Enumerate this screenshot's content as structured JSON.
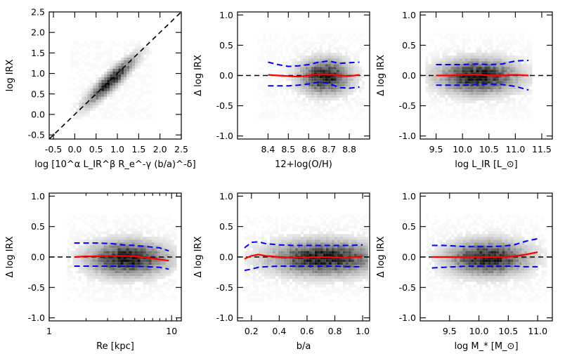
{
  "chart_data": [
    {
      "type": "scatter",
      "subtype": "2d-density",
      "xlabel": "log [10^α L_IR^β R_e^-γ (b/a)^-δ]",
      "ylabel": "log IRX",
      "xlim": [
        -0.6,
        2.5
      ],
      "ylim": [
        -0.6,
        2.5
      ],
      "xscale": "linear",
      "xticks": [
        -0.5,
        0.0,
        0.5,
        1.0,
        1.5,
        2.0,
        2.5
      ],
      "xtick_labels": [
        "-0.5",
        "0.0",
        "0.5",
        "1.0",
        "1.5",
        "2.0",
        "2.5"
      ],
      "yticks": [
        -0.5,
        0.0,
        0.5,
        1.0,
        1.5,
        2.0,
        2.5
      ],
      "ytick_labels": [
        "-0.5",
        "0.0",
        "0.5",
        "1.0",
        "1.5",
        "2.0",
        "2.5"
      ],
      "density": {
        "shape": "diagonal",
        "cx": 0.85,
        "cy": 0.82,
        "sx": 0.32,
        "sy": 0.32,
        "rho": 0.9,
        "xmin": -0.1,
        "xmax": 1.8,
        "ymin": -0.1,
        "ymax": 1.8
      },
      "reference_line": {
        "style": "dashed",
        "color": "#000000",
        "x": [
          -0.6,
          2.5
        ],
        "y": [
          -0.6,
          2.5
        ]
      },
      "median": null,
      "envelope_upper": null,
      "envelope_lower": null
    },
    {
      "type": "scatter",
      "subtype": "2d-density",
      "xlabel": "12+log(O/H)",
      "ylabel": "Δ log IRX",
      "xlim": [
        8.25,
        8.9
      ],
      "ylim": [
        -1.05,
        1.05
      ],
      "xscale": "linear",
      "xticks": [
        8.4,
        8.5,
        8.6,
        8.7,
        8.8
      ],
      "xtick_labels": [
        "8.4",
        "8.5",
        "8.6",
        "8.7",
        "8.8"
      ],
      "yticks": [
        -1.0,
        -0.5,
        0.0,
        0.5,
        1.0
      ],
      "ytick_labels": [
        "-1.0",
        "-0.5",
        "0.0",
        "0.5",
        "1.0"
      ],
      "density": {
        "shape": "gauss",
        "cx": 8.68,
        "cy": -0.02,
        "sx": 0.07,
        "sy": 0.16,
        "xmin": 8.35,
        "xmax": 8.87,
        "ymin": -0.7,
        "ymax": 0.7
      },
      "reference_line": {
        "style": "dashed",
        "color": "#000000",
        "x": [
          8.25,
          8.9
        ],
        "y": [
          0,
          0
        ]
      },
      "median": {
        "x": [
          8.4,
          8.45,
          8.5,
          8.55,
          8.6,
          8.65,
          8.7,
          8.75,
          8.8,
          8.85
        ],
        "y": [
          0.01,
          0.0,
          -0.01,
          -0.02,
          0.0,
          0.02,
          0.02,
          0.0,
          -0.01,
          0.01
        ]
      },
      "envelope_upper": {
        "x": [
          8.4,
          8.45,
          8.5,
          8.55,
          8.6,
          8.65,
          8.7,
          8.75,
          8.8,
          8.85
        ],
        "y": [
          0.22,
          0.18,
          0.15,
          0.16,
          0.18,
          0.22,
          0.24,
          0.2,
          0.21,
          0.22
        ]
      },
      "envelope_lower": {
        "x": [
          8.4,
          8.45,
          8.5,
          8.55,
          8.6,
          8.65,
          8.7,
          8.75,
          8.8,
          8.85
        ],
        "y": [
          -0.17,
          -0.17,
          -0.17,
          -0.16,
          -0.14,
          -0.11,
          -0.13,
          -0.2,
          -0.21,
          -0.19
        ]
      }
    },
    {
      "type": "scatter",
      "subtype": "2d-density",
      "xlabel": "log L_IR [L_⊙]",
      "ylabel": "Δ log IRX",
      "xlim": [
        9.2,
        11.7
      ],
      "ylim": [
        -1.05,
        1.05
      ],
      "xscale": "linear",
      "xticks": [
        9.5,
        10.0,
        10.5,
        11.0,
        11.5
      ],
      "xtick_labels": [
        "9.5",
        "10.0",
        "10.5",
        "11.0",
        "11.5"
      ],
      "yticks": [
        -1.0,
        -0.5,
        0.0,
        0.5,
        1.0
      ],
      "ytick_labels": [
        "-1.0",
        "-0.5",
        "0.0",
        "0.5",
        "1.0"
      ],
      "density": {
        "shape": "gauss",
        "cx": 10.3,
        "cy": -0.02,
        "sx": 0.42,
        "sy": 0.16,
        "xmin": 9.3,
        "xmax": 11.3,
        "ymin": -0.7,
        "ymax": 0.7
      },
      "reference_line": {
        "style": "dashed",
        "color": "#000000",
        "x": [
          9.2,
          11.7
        ],
        "y": [
          0,
          0
        ]
      },
      "median": {
        "x": [
          9.5,
          9.75,
          10.0,
          10.25,
          10.5,
          10.75,
          11.0,
          11.25
        ],
        "y": [
          0.0,
          0.0,
          0.01,
          0.02,
          0.0,
          0.0,
          0.01,
          0.0
        ]
      },
      "envelope_upper": {
        "x": [
          9.5,
          9.75,
          10.0,
          10.25,
          10.5,
          10.75,
          11.0,
          11.25
        ],
        "y": [
          0.18,
          0.18,
          0.18,
          0.19,
          0.18,
          0.19,
          0.24,
          0.25
        ]
      },
      "envelope_lower": {
        "x": [
          9.5,
          9.75,
          10.0,
          10.25,
          10.5,
          10.75,
          11.0,
          11.25
        ],
        "y": [
          -0.16,
          -0.16,
          -0.16,
          -0.15,
          -0.14,
          -0.15,
          -0.18,
          -0.24
        ]
      }
    },
    {
      "type": "scatter",
      "subtype": "2d-density",
      "xlabel": "Re [kpc]",
      "ylabel": "Δ log IRX",
      "xlim": [
        1,
        12
      ],
      "ylim": [
        -1.05,
        1.05
      ],
      "xscale": "log",
      "xticks": [
        1,
        10
      ],
      "xtick_labels": [
        "1",
        "10"
      ],
      "yticks": [
        -1.0,
        -0.5,
        0.0,
        0.5,
        1.0
      ],
      "ytick_labels": [
        "-1.0",
        "-0.5",
        "0.0",
        "0.5",
        "1.0"
      ],
      "density": {
        "shape": "gauss",
        "cx": 4.4,
        "cy": -0.03,
        "sx": 0.18,
        "sy": 0.16,
        "xmin": 1.4,
        "xmax": 10.5,
        "ymin": -0.7,
        "ymax": 0.7
      },
      "reference_line": {
        "style": "dashed",
        "color": "#000000",
        "x": [
          1,
          12
        ],
        "y": [
          0,
          0
        ]
      },
      "median": {
        "x": [
          1.6,
          2.0,
          2.5,
          3.2,
          4.0,
          5.0,
          6.3,
          8.0,
          9.5
        ],
        "y": [
          0.0,
          0.01,
          0.01,
          0.02,
          0.02,
          0.01,
          -0.01,
          -0.04,
          -0.06
        ]
      },
      "envelope_upper": {
        "x": [
          1.6,
          2.0,
          2.5,
          3.2,
          4.0,
          5.0,
          6.3,
          8.0,
          9.5
        ],
        "y": [
          0.23,
          0.23,
          0.23,
          0.22,
          0.2,
          0.19,
          0.17,
          0.15,
          0.1
        ]
      },
      "envelope_lower": {
        "x": [
          1.6,
          2.0,
          2.5,
          3.2,
          4.0,
          5.0,
          6.3,
          8.0,
          9.5
        ],
        "y": [
          -0.15,
          -0.15,
          -0.15,
          -0.15,
          -0.15,
          -0.15,
          -0.16,
          -0.17,
          -0.2
        ]
      }
    },
    {
      "type": "scatter",
      "subtype": "2d-density",
      "xlabel": "b/a",
      "ylabel": "Δ log IRX",
      "xlim": [
        0.1,
        1.05
      ],
      "ylim": [
        -1.05,
        1.05
      ],
      "xscale": "linear",
      "xticks": [
        0.2,
        0.4,
        0.6,
        0.8,
        1.0
      ],
      "xtick_labels": [
        "0.2",
        "0.4",
        "0.6",
        "0.8",
        "1.0"
      ],
      "yticks": [
        -1.0,
        -0.5,
        0.0,
        0.5,
        1.0
      ],
      "ytick_labels": [
        "-1.0",
        "-0.5",
        "0.0",
        "0.5",
        "1.0"
      ],
      "density": {
        "shape": "gauss",
        "cx": 0.72,
        "cy": -0.02,
        "sx": 0.22,
        "sy": 0.16,
        "xmin": 0.15,
        "xmax": 1.02,
        "ymin": -0.7,
        "ymax": 0.7
      },
      "reference_line": {
        "style": "dashed",
        "color": "#000000",
        "x": [
          0.1,
          1.05
        ],
        "y": [
          0,
          0
        ]
      },
      "median": {
        "x": [
          0.15,
          0.2,
          0.25,
          0.3,
          0.4,
          0.5,
          0.6,
          0.7,
          0.8,
          0.9,
          1.0
        ],
        "y": [
          -0.03,
          0.02,
          0.04,
          0.02,
          0.0,
          -0.01,
          -0.01,
          0.0,
          -0.01,
          -0.01,
          0.01
        ]
      },
      "envelope_upper": {
        "x": [
          0.15,
          0.2,
          0.25,
          0.3,
          0.4,
          0.5,
          0.6,
          0.7,
          0.8,
          0.9,
          1.0
        ],
        "y": [
          0.15,
          0.24,
          0.25,
          0.22,
          0.2,
          0.19,
          0.19,
          0.19,
          0.19,
          0.19,
          0.2
        ]
      },
      "envelope_lower": {
        "x": [
          0.15,
          0.2,
          0.25,
          0.3,
          0.4,
          0.5,
          0.6,
          0.7,
          0.8,
          0.9,
          1.0
        ],
        "y": [
          -0.22,
          -0.2,
          -0.17,
          -0.16,
          -0.15,
          -0.15,
          -0.15,
          -0.15,
          -0.15,
          -0.16,
          -0.16
        ]
      }
    },
    {
      "type": "scatter",
      "subtype": "2d-density",
      "xlabel": "log M_* [M_⊙]",
      "ylabel": "Δ log IRX",
      "xlim": [
        9.0,
        11.25
      ],
      "ylim": [
        -1.05,
        1.05
      ],
      "xscale": "linear",
      "xticks": [
        9.5,
        10.0,
        10.5,
        11.0
      ],
      "xtick_labels": [
        "9.5",
        "10.0",
        "10.5",
        "11.0"
      ],
      "yticks": [
        -1.0,
        -0.5,
        0.0,
        0.5,
        1.0
      ],
      "ytick_labels": [
        "-1.0",
        "-0.5",
        "0.0",
        "0.5",
        "1.0"
      ],
      "density": {
        "shape": "gauss",
        "cx": 10.15,
        "cy": -0.02,
        "sx": 0.38,
        "sy": 0.16,
        "xmin": 9.1,
        "xmax": 11.15,
        "ymin": -0.7,
        "ymax": 0.7
      },
      "reference_line": {
        "style": "dashed",
        "color": "#000000",
        "x": [
          9.0,
          11.25
        ],
        "y": [
          0,
          0
        ]
      },
      "median": {
        "x": [
          9.2,
          9.4,
          9.6,
          9.8,
          10.0,
          10.2,
          10.4,
          10.6,
          10.8,
          11.0
        ],
        "y": [
          0.0,
          0.0,
          0.0,
          0.0,
          0.0,
          0.0,
          0.0,
          0.01,
          0.04,
          0.08
        ]
      },
      "envelope_upper": {
        "x": [
          9.2,
          9.4,
          9.6,
          9.8,
          10.0,
          10.2,
          10.4,
          10.6,
          10.8,
          11.0
        ],
        "y": [
          0.19,
          0.19,
          0.18,
          0.17,
          0.17,
          0.17,
          0.18,
          0.2,
          0.26,
          0.3
        ]
      },
      "envelope_lower": {
        "x": [
          9.2,
          9.4,
          9.6,
          9.8,
          10.0,
          10.2,
          10.4,
          10.6,
          10.8,
          11.0
        ],
        "y": [
          -0.18,
          -0.17,
          -0.16,
          -0.15,
          -0.15,
          -0.15,
          -0.15,
          -0.15,
          -0.16,
          -0.16
        ]
      }
    }
  ],
  "colors": {
    "median": "#ff0000",
    "envelope": "#0000ff",
    "reference": "#000000",
    "axes": "#000000"
  }
}
